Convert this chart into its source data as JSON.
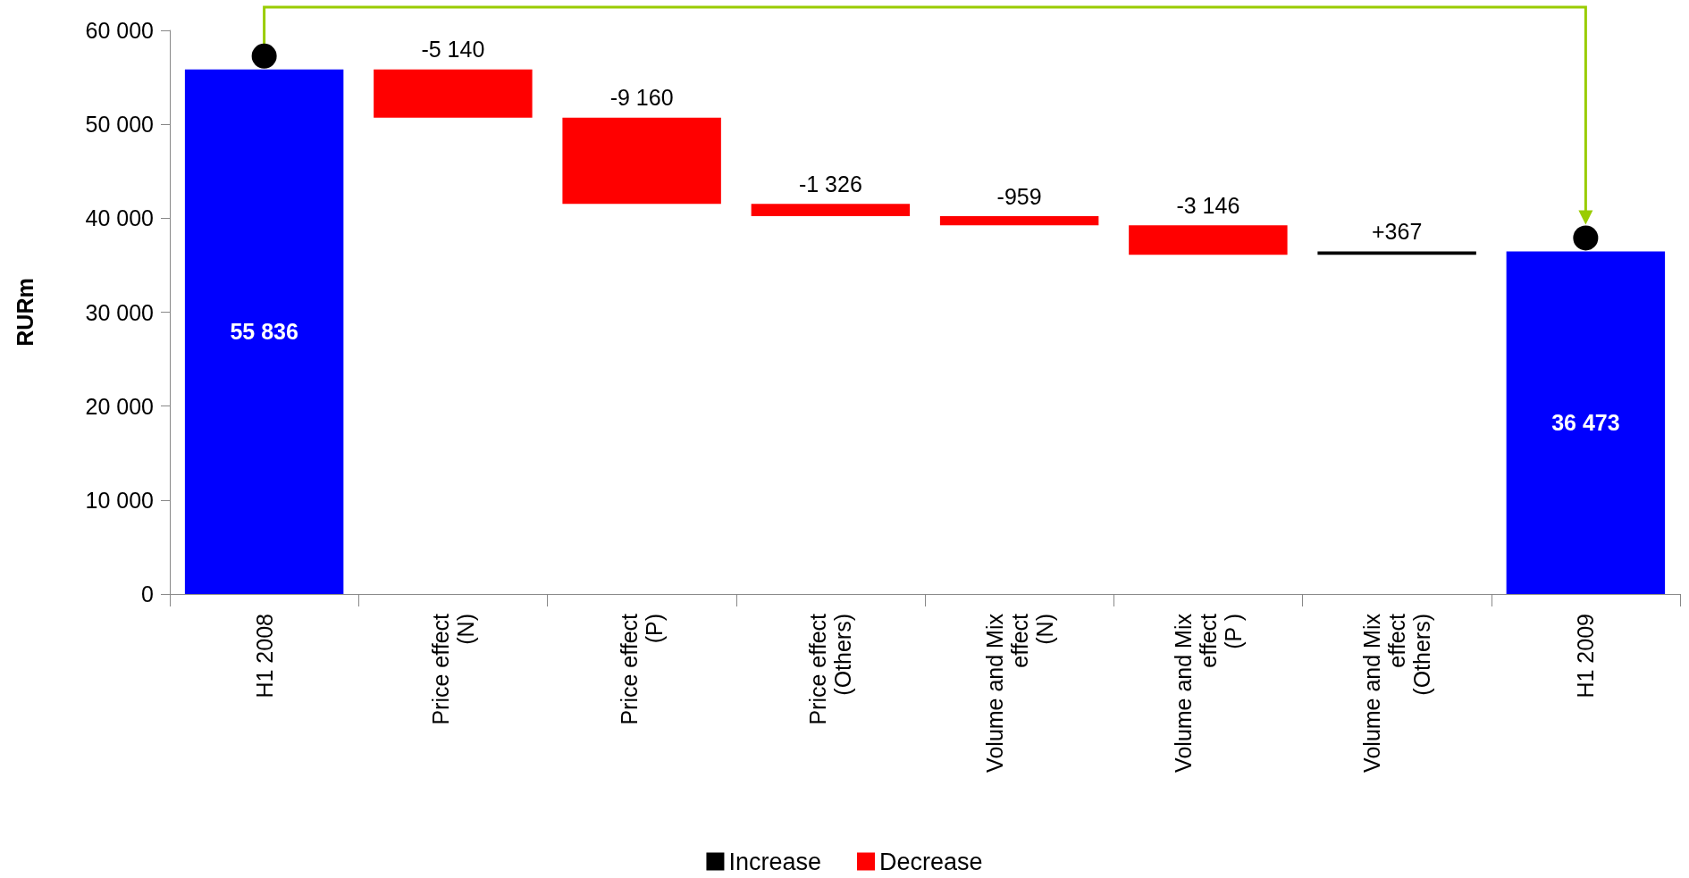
{
  "chart_data": {
    "type": "bar",
    "ylabel": "RURm",
    "categories": [
      "H1 2008",
      "Price effect\n(N)",
      "Price effect\n(P)",
      "Price effect\n(Others)",
      "Volume and Mix\neffect\n(N)",
      "Volume and Mix\neffect\n(P )",
      "Volume and Mix\neffect\n(Others)",
      "H1 2009"
    ],
    "series": [
      {
        "color": "#0000ff",
        "values": [
          55836,
          null,
          null,
          null,
          null,
          null,
          null,
          36473
        ],
        "base": [
          0,
          null,
          null,
          null,
          null,
          null,
          null,
          0
        ],
        "value_labels": [
          "55 836",
          null,
          null,
          null,
          null,
          null,
          null,
          "36 473"
        ]
      },
      {
        "name": "Increase",
        "color": "#000000",
        "values": [
          null,
          null,
          null,
          null,
          null,
          null,
          367,
          null
        ],
        "base": [
          null,
          null,
          null,
          null,
          null,
          null,
          36105,
          null
        ],
        "value_labels": [
          null,
          null,
          null,
          null,
          null,
          null,
          "+367",
          null
        ]
      },
      {
        "name": "Decrease",
        "color": "#ff0000",
        "values": [
          null,
          -5140,
          -9160,
          -1326,
          -959,
          -3146,
          null,
          null
        ],
        "base": [
          null,
          55836,
          50696,
          41536,
          40210,
          39251,
          null,
          null
        ],
        "value_labels": [
          null,
          "-5 140",
          "-9 160",
          "-1 326",
          "-959",
          "-3 146",
          null,
          null
        ]
      }
    ],
    "ylim": [
      0,
      60000
    ],
    "yticks": [
      {
        "value": 0,
        "label": "0"
      },
      {
        "value": 10000,
        "label": "10 000"
      },
      {
        "value": 20000,
        "label": "20 000"
      },
      {
        "value": 30000,
        "label": "30 000"
      },
      {
        "value": 40000,
        "label": "40 000"
      },
      {
        "value": 50000,
        "label": "50 000"
      },
      {
        "value": 60000,
        "label": "60 000"
      }
    ],
    "legend": "bottom",
    "grid": false
  }
}
